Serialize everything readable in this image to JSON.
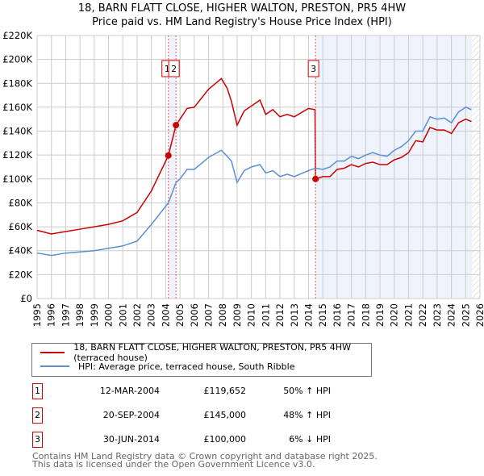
{
  "chart_data": {
    "type": "line",
    "title": "18, BARN FLATT CLOSE, HIGHER WALTON, PRESTON, PR5 4HW",
    "subtitle": "Price paid vs. HM Land Registry's House Price Index (HPI)",
    "xlim": [
      1995,
      2026
    ],
    "ylim": [
      0,
      220000
    ],
    "y_ticks": [
      0,
      20000,
      40000,
      60000,
      80000,
      100000,
      120000,
      140000,
      160000,
      180000,
      200000,
      220000
    ],
    "y_tick_labels": [
      "£0",
      "£20K",
      "£40K",
      "£60K",
      "£80K",
      "£100K",
      "£120K",
      "£140K",
      "£160K",
      "£180K",
      "£200K",
      "£220K"
    ],
    "x_ticks": [
      1995,
      1996,
      1997,
      1998,
      1999,
      2000,
      2001,
      2002,
      2003,
      2004,
      2005,
      2006,
      2007,
      2008,
      2009,
      2010,
      2011,
      2012,
      2013,
      2014,
      2015,
      2016,
      2017,
      2018,
      2019,
      2020,
      2021,
      2022,
      2023,
      2024,
      2025,
      2026
    ],
    "grid": true,
    "series": [
      {
        "name": "18, BARN FLATT CLOSE, HIGHER WALTON, PRESTON, PR5 4HW (terraced house)",
        "color": "#cc0000",
        "x": [
          1995,
          1996,
          1997,
          1998,
          1999,
          2000,
          2001,
          2002,
          2003,
          2004.19,
          2004.72,
          2005,
          2005.5,
          2006,
          2007,
          2007.9,
          2008.3,
          2008.6,
          2009,
          2009.5,
          2010,
          2010.6,
          2011,
          2011.5,
          2012,
          2012.5,
          2013,
          2014,
          2014.45,
          2014.49,
          2015,
          2015.5,
          2016,
          2016.5,
          2017,
          2017.5,
          2018,
          2018.5,
          2019,
          2019.5,
          2020,
          2020.5,
          2021,
          2021.5,
          2022,
          2022.5,
          2023,
          2023.5,
          2024,
          2024.5,
          2025,
          2025.4
        ],
        "y": [
          57000,
          54000,
          56000,
          58000,
          60000,
          62000,
          65000,
          72000,
          90000,
          119652,
          145000,
          150000,
          159000,
          160000,
          175000,
          184000,
          176000,
          165000,
          145000,
          157000,
          161000,
          166000,
          154000,
          158000,
          152000,
          154000,
          152000,
          159000,
          158000,
          100000,
          102000,
          102000,
          108000,
          109000,
          112000,
          110000,
          113000,
          114000,
          112000,
          112000,
          116000,
          118000,
          122000,
          132000,
          131000,
          143000,
          141000,
          141000,
          138000,
          147000,
          150000,
          148000
        ]
      },
      {
        "name": "HPI: Average price, terraced house, South Ribble",
        "color": "#5b8fd4",
        "x": [
          1995,
          1996,
          1997,
          1998,
          1999,
          2000,
          2001,
          2002,
          2003,
          2004.19,
          2004.72,
          2005,
          2005.5,
          2006,
          2007,
          2007.9,
          2008.3,
          2008.6,
          2009,
          2009.5,
          2010,
          2010.6,
          2011,
          2011.5,
          2012,
          2012.5,
          2013,
          2014,
          2014.5,
          2015,
          2015.5,
          2016,
          2016.5,
          2017,
          2017.5,
          2018,
          2018.5,
          2019,
          2019.5,
          2020,
          2020.5,
          2021,
          2021.5,
          2022,
          2022.5,
          2023,
          2023.5,
          2024,
          2024.5,
          2025,
          2025.4
        ],
        "y": [
          38000,
          36000,
          38000,
          39000,
          40000,
          42000,
          44000,
          48000,
          62000,
          80000,
          97000,
          100000,
          108000,
          108000,
          118000,
          124000,
          119000,
          115000,
          97000,
          107000,
          110000,
          112000,
          105000,
          107000,
          102000,
          104000,
          102000,
          107000,
          109000,
          108000,
          110000,
          115000,
          115000,
          119000,
          117000,
          120000,
          122000,
          120000,
          119000,
          124000,
          127000,
          132000,
          140000,
          140000,
          152000,
          150000,
          151000,
          147000,
          156000,
          160000,
          158000
        ]
      }
    ],
    "sales": [
      {
        "label": "1",
        "date": "12-MAR-2004",
        "x": 2004.19,
        "price": "£119,652",
        "value": 119652,
        "hpi": "50% ↑ HPI"
      },
      {
        "label": "2",
        "date": "20-SEP-2004",
        "x": 2004.72,
        "price": "£145,000",
        "value": 145000,
        "hpi": "48% ↑ HPI"
      },
      {
        "label": "3",
        "date": "30-JUN-2014",
        "x": 2014.49,
        "price": "£100,000",
        "value": 100000,
        "hpi": "6% ↓ HPI"
      }
    ],
    "forecast_start": 2025.45,
    "legend_position": "below"
  },
  "footer": [
    "Contains HM Land Registry data © Crown copyright and database right 2025.",
    "This data is licensed under the Open Government Licence v3.0."
  ]
}
